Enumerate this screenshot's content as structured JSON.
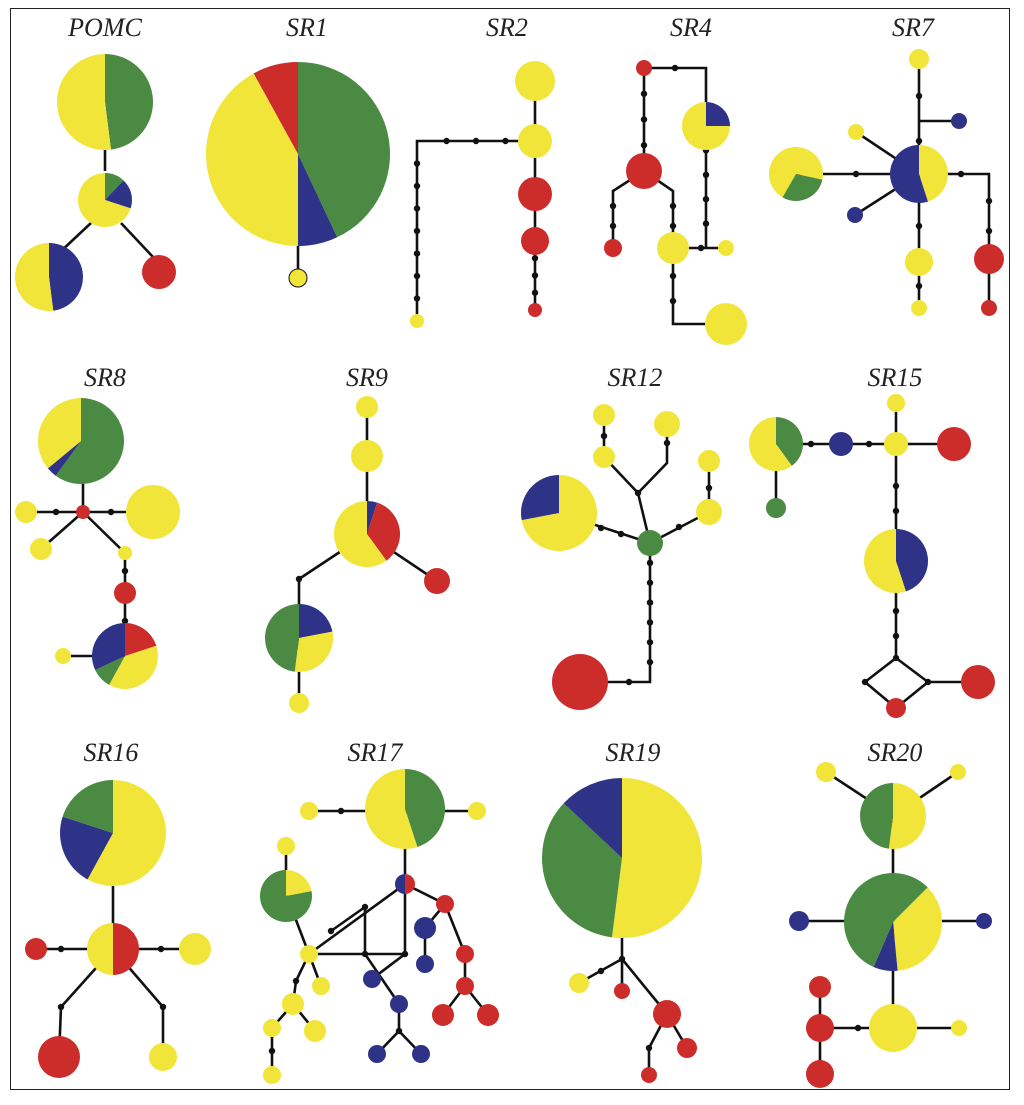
{
  "colors": {
    "yellow": "#f2e53a",
    "green": "#4a8a42",
    "blue": "#2e3388",
    "red": "#cc2c2a",
    "edge": "#111111"
  },
  "panels": [
    {
      "title": "POMC"
    },
    {
      "title": "SR1"
    },
    {
      "title": "SR2"
    },
    {
      "title": "SR4"
    },
    {
      "title": "SR7"
    },
    {
      "title": "SR8"
    },
    {
      "title": "SR9"
    },
    {
      "title": "SR12"
    },
    {
      "title": "SR15"
    },
    {
      "title": "SR16"
    },
    {
      "title": "SR17"
    },
    {
      "title": "SR19"
    },
    {
      "title": "SR20"
    }
  ]
}
